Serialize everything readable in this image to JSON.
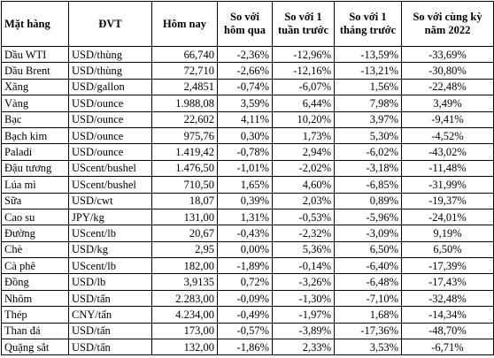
{
  "headers": [
    "Mặt hàng",
    "ĐVT",
    "Hôm nay",
    "So với hôm qua",
    "So với 1 tuần trước",
    "So với 1 tháng trước",
    "So với cùng kỳ năm 2022"
  ],
  "rows": [
    [
      "Dầu WTI",
      "USD/thùng",
      "66,740",
      "-2,36%",
      "-12,96%",
      "-13,59%",
      "-33,69%"
    ],
    [
      "Dầu Brent",
      "USD/thùng",
      "72,710",
      "-2,66%",
      "-12,16%",
      "-13,21%",
      "-30,80%"
    ],
    [
      "Xăng",
      "USD/gallon",
      "2,4851",
      "-0,74%",
      "-6,07%",
      "1,56%",
      "-22,48%"
    ],
    [
      "Vàng",
      "USD/ounce",
      "1.988,08",
      "3,59%",
      "6,44%",
      "7,98%",
      "3,49%"
    ],
    [
      "Bạc",
      "USD/ounce",
      "22,602",
      "4,11%",
      "10,20%",
      "3,97%",
      "-9,41%"
    ],
    [
      "Bạch kim",
      "USD/ounce",
      "975,76",
      "0,30%",
      "1,73%",
      "5,30%",
      "-4,52%"
    ],
    [
      "Paladi",
      "USD/ounce",
      "1.419,42",
      "-0,78%",
      "2,94%",
      "-6,02%",
      "-43,02%"
    ],
    [
      "Đậu tương",
      "UScent/bushel",
      "1.476,50",
      "-1,01%",
      "-2,02%",
      "-3,18%",
      "-11,48%"
    ],
    [
      "Lúa mì",
      "UScent/bushel",
      "710,50",
      "1,65%",
      "4,60%",
      "-6,85%",
      "-31,99%"
    ],
    [
      "Sữa",
      "USD/cwt",
      "18,07",
      "0,39%",
      "2,03%",
      "0,89%",
      "-19,37%"
    ],
    [
      "Cao su",
      "JPY/kg",
      "131,00",
      "1,31%",
      "-0,53%",
      "-5,96%",
      "-24,01%"
    ],
    [
      "Đường",
      "UScent/lb",
      "20,67",
      "-0,43%",
      "-2,32%",
      "-3,09%",
      "9,19%"
    ],
    [
      "Chè",
      "USD/kg",
      "2,95",
      "0,00%",
      "5,36%",
      "6,50%",
      "6,50%"
    ],
    [
      "Cà phê",
      "UScent/lb",
      "182,00",
      "-1,89%",
      "-0,14%",
      "-6,40%",
      "-17,39%"
    ],
    [
      "Đồng",
      "USD/lb",
      "3,9135",
      "0,72%",
      "-3,26%",
      "-6,48%",
      "-17,43%"
    ],
    [
      "Nhôm",
      "USD/tấn",
      "2.283,00",
      "-0,09%",
      "-1,30%",
      "-7,10%",
      "-32,48%"
    ],
    [
      "Thép",
      "CNY/tấn",
      "4.234,00",
      "-0,49%",
      "-1,97%",
      "1,68%",
      "-14,34%"
    ],
    [
      "Than đá",
      "USD/tấn",
      "173,00",
      "-0,57%",
      "-3,89%",
      "-17,36%",
      "-48,70%"
    ],
    [
      "Quặng sắt",
      "USD/tấn",
      "132,00",
      "-1,86%",
      "2,33%",
      "3,53%",
      "-6,71%"
    ]
  ]
}
